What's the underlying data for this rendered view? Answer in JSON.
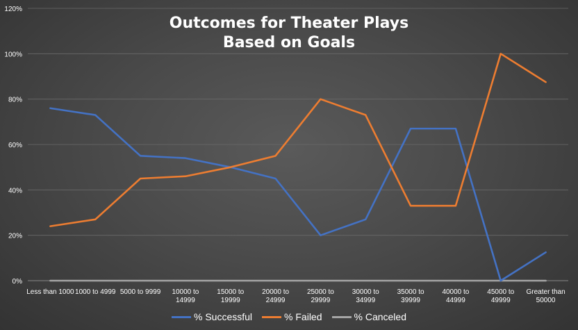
{
  "chart_data": {
    "type": "line",
    "title_lines": [
      "Outcomes for Theater Plays",
      "Based on Goals"
    ],
    "categories": [
      [
        "Less than 1000"
      ],
      [
        "1000 to 4999"
      ],
      [
        "5000 to 9999"
      ],
      [
        "10000 to",
        "14999"
      ],
      [
        "15000 to",
        "19999"
      ],
      [
        "20000 to",
        "24999"
      ],
      [
        "25000 to",
        "29999"
      ],
      [
        "30000 to",
        "34999"
      ],
      [
        "35000 to",
        "39999"
      ],
      [
        "40000 to",
        "44999"
      ],
      [
        "45000 to",
        "49999"
      ],
      [
        "Greater than",
        "50000"
      ]
    ],
    "series": [
      {
        "name": "% Successful",
        "color": "#4472c4",
        "values": [
          76,
          73,
          55,
          54,
          50,
          45,
          20,
          27,
          67,
          67,
          0,
          12.5
        ]
      },
      {
        "name": "% Failed",
        "color": "#ed7d31",
        "values": [
          24,
          27,
          45,
          46,
          50,
          55,
          80,
          73,
          33,
          33,
          100,
          87.5
        ]
      },
      {
        "name": "% Canceled",
        "color": "#a5a5a5",
        "values": [
          0,
          0,
          0,
          0,
          0,
          0,
          0,
          0,
          0,
          0,
          0,
          0
        ]
      }
    ],
    "y_ticks": [
      "0%",
      "20%",
      "40%",
      "60%",
      "80%",
      "100%",
      "120%"
    ],
    "ylim": [
      0,
      120
    ],
    "grid": true,
    "legend_position": "bottom"
  }
}
